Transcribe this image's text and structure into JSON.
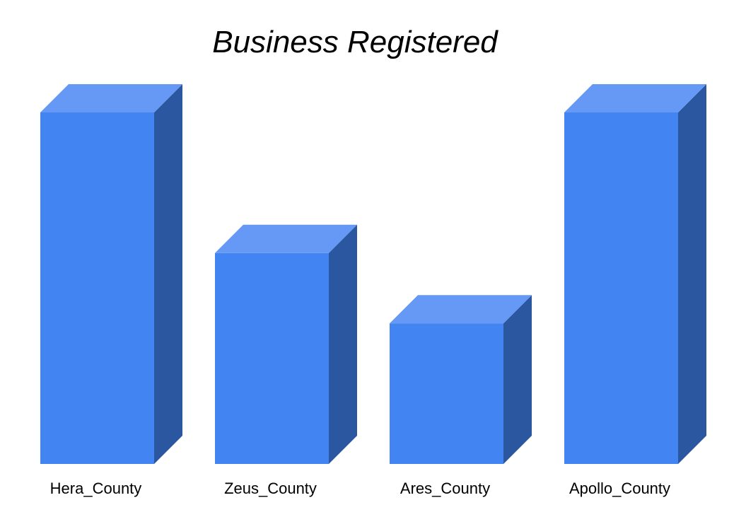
{
  "chart_data": {
    "type": "bar",
    "title": "Business Registered",
    "xlabel": "",
    "ylabel": "",
    "categories": [
      "Hera_County",
      "Zeus_County",
      "Ares_County",
      "Apollo_County"
    ],
    "values": [
      100,
      60,
      40,
      100
    ],
    "ylim": [
      0,
      100
    ],
    "grid": false,
    "legend": "none",
    "style": "3d-column"
  },
  "colors": {
    "front": "#4384f3",
    "top": "#6599f5",
    "side": "#2b57a0",
    "text": "#000000",
    "background": "#ffffff"
  }
}
